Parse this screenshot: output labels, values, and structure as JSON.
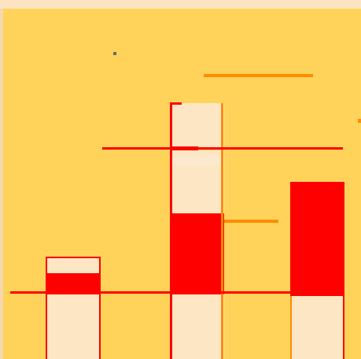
{
  "scene": {
    "palette": {
      "sky": "#FFD35A",
      "top_band": "#FCE4C2",
      "left_edge": "#F5D7B0",
      "cream": "#FDE6C4",
      "cream_light": "#FBE9CF",
      "red": "#FF0000",
      "orange": "#FF8C00",
      "dark_speck": "#6B6B6B"
    }
  }
}
